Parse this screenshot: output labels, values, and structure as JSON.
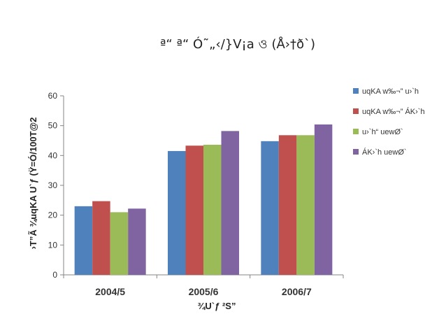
{
  "chart_data": {
    "type": "bar",
    "title": "ª“ ª“ Ó˜„‹/}V¡a ও (Å›†ð`)",
    "xlabel": "¾U`ƒ ²S”",
    "ylabel": "›T”Ã ¾uqKA U`ƒ (Ÿ=Ó/100T@2",
    "categories": [
      "2004/5",
      "2005/6",
      "2006/7"
    ],
    "ylim": [
      0,
      60
    ],
    "yticks": [
      0,
      10,
      20,
      30,
      40,
      50,
      60
    ],
    "grid": false,
    "legend_position": "right",
    "series": [
      {
        "name": "uqKA w‰¬” u›`h",
        "color": "#4F81BD",
        "values": [
          23,
          41.5,
          44.8
        ]
      },
      {
        "name": "uqKA w‰¬” ÁK›`h",
        "color": "#C0504D",
        "values": [
          24.7,
          43.3,
          46.8
        ]
      },
      {
        "name": "u›`h“ uewØ`",
        "color": "#9BBB59",
        "values": [
          21,
          43.6,
          46.8
        ]
      },
      {
        "name": "ÁK›`h uewØ`",
        "color": "#8064A2",
        "values": [
          22.2,
          48.2,
          50.4
        ]
      }
    ]
  }
}
